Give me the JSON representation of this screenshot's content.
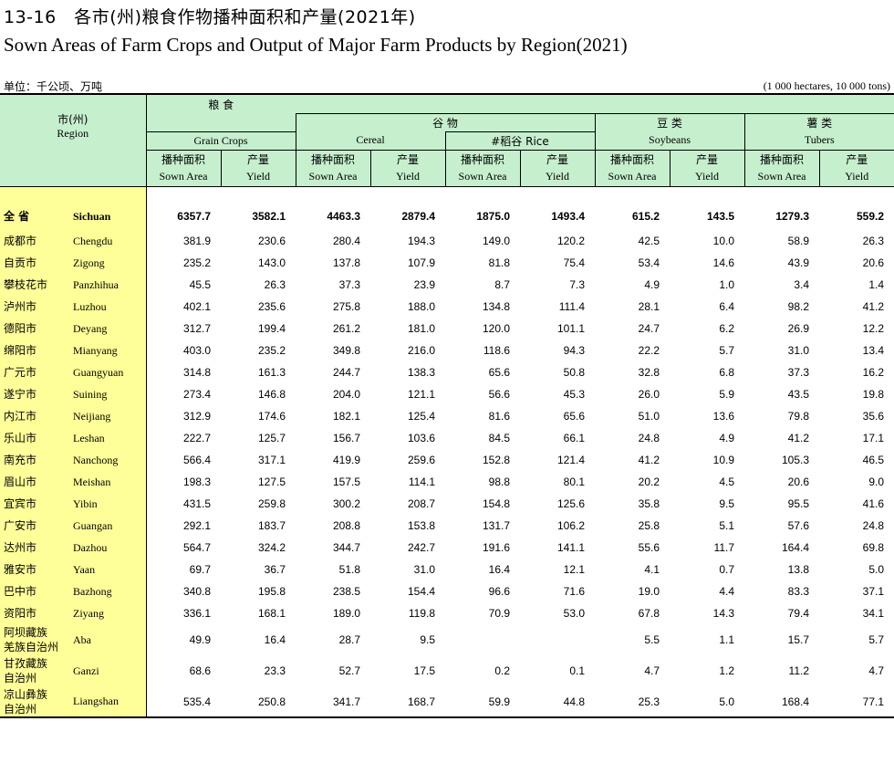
{
  "title_cn": "13-16　各市(州)粮食作物播种面积和产量(2021年)",
  "title_en": "Sown Areas of Farm Crops and Output of Major Farm Products by Region(2021)",
  "unit_cn": "单位：千公顷、万吨",
  "unit_en": "(1 000 hectares, 10 000 tons)",
  "header": {
    "region_cn": "市(州)",
    "region_en": "Region",
    "grain_cn": "粮 食",
    "grain_en": "Grain Crops",
    "cereal_cn": "谷 物",
    "cereal_en": "Cereal",
    "rice_label": "#稻谷 Rice",
    "soy_cn": "豆 类",
    "soy_en": "Soybeans",
    "tuber_cn": "薯 类",
    "tuber_en": "Tubers",
    "area_cn": "播种面积",
    "area_en": "Sown Area",
    "yield_cn": "产量",
    "yield_en": "Yield"
  },
  "rows": [
    {
      "cn": "全 省",
      "en": "Sichuan",
      "v": [
        "6357.7",
        "3582.1",
        "4463.3",
        "2879.4",
        "1875.0",
        "1493.4",
        "615.2",
        "143.5",
        "1279.3",
        "559.2"
      ]
    },
    {
      "cn": "成都市",
      "en": "Chengdu",
      "v": [
        "381.9",
        "230.6",
        "280.4",
        "194.3",
        "149.0",
        "120.2",
        "42.5",
        "10.0",
        "58.9",
        "26.3"
      ]
    },
    {
      "cn": "自贡市",
      "en": "Zigong",
      "v": [
        "235.2",
        "143.0",
        "137.8",
        "107.9",
        "81.8",
        "75.4",
        "53.4",
        "14.6",
        "43.9",
        "20.6"
      ]
    },
    {
      "cn": "攀枝花市",
      "en": "Panzhihua",
      "v": [
        "45.5",
        "26.3",
        "37.3",
        "23.9",
        "8.7",
        "7.3",
        "4.9",
        "1.0",
        "3.4",
        "1.4"
      ]
    },
    {
      "cn": "泸州市",
      "en": "Luzhou",
      "v": [
        "402.1",
        "235.6",
        "275.8",
        "188.0",
        "134.8",
        "111.4",
        "28.1",
        "6.4",
        "98.2",
        "41.2"
      ]
    },
    {
      "cn": "德阳市",
      "en": "Deyang",
      "v": [
        "312.7",
        "199.4",
        "261.2",
        "181.0",
        "120.0",
        "101.1",
        "24.7",
        "6.2",
        "26.9",
        "12.2"
      ]
    },
    {
      "cn": "绵阳市",
      "en": "Mianyang",
      "v": [
        "403.0",
        "235.2",
        "349.8",
        "216.0",
        "118.6",
        "94.3",
        "22.2",
        "5.7",
        "31.0",
        "13.4"
      ]
    },
    {
      "cn": "广元市",
      "en": "Guangyuan",
      "v": [
        "314.8",
        "161.3",
        "244.7",
        "138.3",
        "65.6",
        "50.8",
        "32.8",
        "6.8",
        "37.3",
        "16.2"
      ]
    },
    {
      "cn": "遂宁市",
      "en": "Suining",
      "v": [
        "273.4",
        "146.8",
        "204.0",
        "121.1",
        "56.6",
        "45.3",
        "26.0",
        "5.9",
        "43.5",
        "19.8"
      ]
    },
    {
      "cn": "内江市",
      "en": "Neijiang",
      "v": [
        "312.9",
        "174.6",
        "182.1",
        "125.4",
        "81.6",
        "65.6",
        "51.0",
        "13.6",
        "79.8",
        "35.6"
      ]
    },
    {
      "cn": "乐山市",
      "en": "Leshan",
      "v": [
        "222.7",
        "125.7",
        "156.7",
        "103.6",
        "84.5",
        "66.1",
        "24.8",
        "4.9",
        "41.2",
        "17.1"
      ]
    },
    {
      "cn": "南充市",
      "en": "Nanchong",
      "v": [
        "566.4",
        "317.1",
        "419.9",
        "259.6",
        "152.8",
        "121.4",
        "41.2",
        "10.9",
        "105.3",
        "46.5"
      ]
    },
    {
      "cn": "眉山市",
      "en": "Meishan",
      "v": [
        "198.3",
        "127.5",
        "157.5",
        "114.1",
        "98.8",
        "80.1",
        "20.2",
        "4.5",
        "20.6",
        "9.0"
      ]
    },
    {
      "cn": "宜宾市",
      "en": "Yibin",
      "v": [
        "431.5",
        "259.8",
        "300.2",
        "208.7",
        "154.8",
        "125.6",
        "35.8",
        "9.5",
        "95.5",
        "41.6"
      ]
    },
    {
      "cn": "广安市",
      "en": "Guangan",
      "v": [
        "292.1",
        "183.7",
        "208.8",
        "153.8",
        "131.7",
        "106.2",
        "25.8",
        "5.1",
        "57.6",
        "24.8"
      ]
    },
    {
      "cn": "达州市",
      "en": "Dazhou",
      "v": [
        "564.7",
        "324.2",
        "344.7",
        "242.7",
        "191.6",
        "141.1",
        "55.6",
        "11.7",
        "164.4",
        "69.8"
      ]
    },
    {
      "cn": "雅安市",
      "en": "Yaan",
      "v": [
        "69.7",
        "36.7",
        "51.8",
        "31.0",
        "16.4",
        "12.1",
        "4.1",
        "0.7",
        "13.8",
        "5.0"
      ]
    },
    {
      "cn": "巴中市",
      "en": "Bazhong",
      "v": [
        "340.8",
        "195.8",
        "238.5",
        "154.4",
        "96.6",
        "71.6",
        "19.0",
        "4.4",
        "83.3",
        "37.1"
      ]
    },
    {
      "cn": "资阳市",
      "en": "Ziyang",
      "v": [
        "336.1",
        "168.1",
        "189.0",
        "119.8",
        "70.9",
        "53.0",
        "67.8",
        "14.3",
        "79.4",
        "34.1"
      ]
    },
    {
      "cn": "阿坝藏族羌族自治州",
      "cn1": "阿坝藏族",
      "cn2": "羌族自治州",
      "en": "Aba",
      "v": [
        "49.9",
        "16.4",
        "28.7",
        "9.5",
        "",
        "",
        "5.5",
        "1.1",
        "15.7",
        "5.7"
      ]
    },
    {
      "cn": "甘孜藏族自治州",
      "cn1": "甘孜藏族",
      "cn2": "自治州",
      "en": "Ganzi",
      "v": [
        "68.6",
        "23.3",
        "52.7",
        "17.5",
        "0.2",
        "0.1",
        "4.7",
        "1.2",
        "11.2",
        "4.7"
      ]
    },
    {
      "cn": "凉山彝族自治州",
      "cn1": "凉山彝族",
      "cn2": "自治州",
      "en": "Liangshan",
      "v": [
        "535.4",
        "250.8",
        "341.7",
        "168.7",
        "59.9",
        "44.8",
        "25.3",
        "5.0",
        "168.4",
        "77.1"
      ]
    }
  ]
}
